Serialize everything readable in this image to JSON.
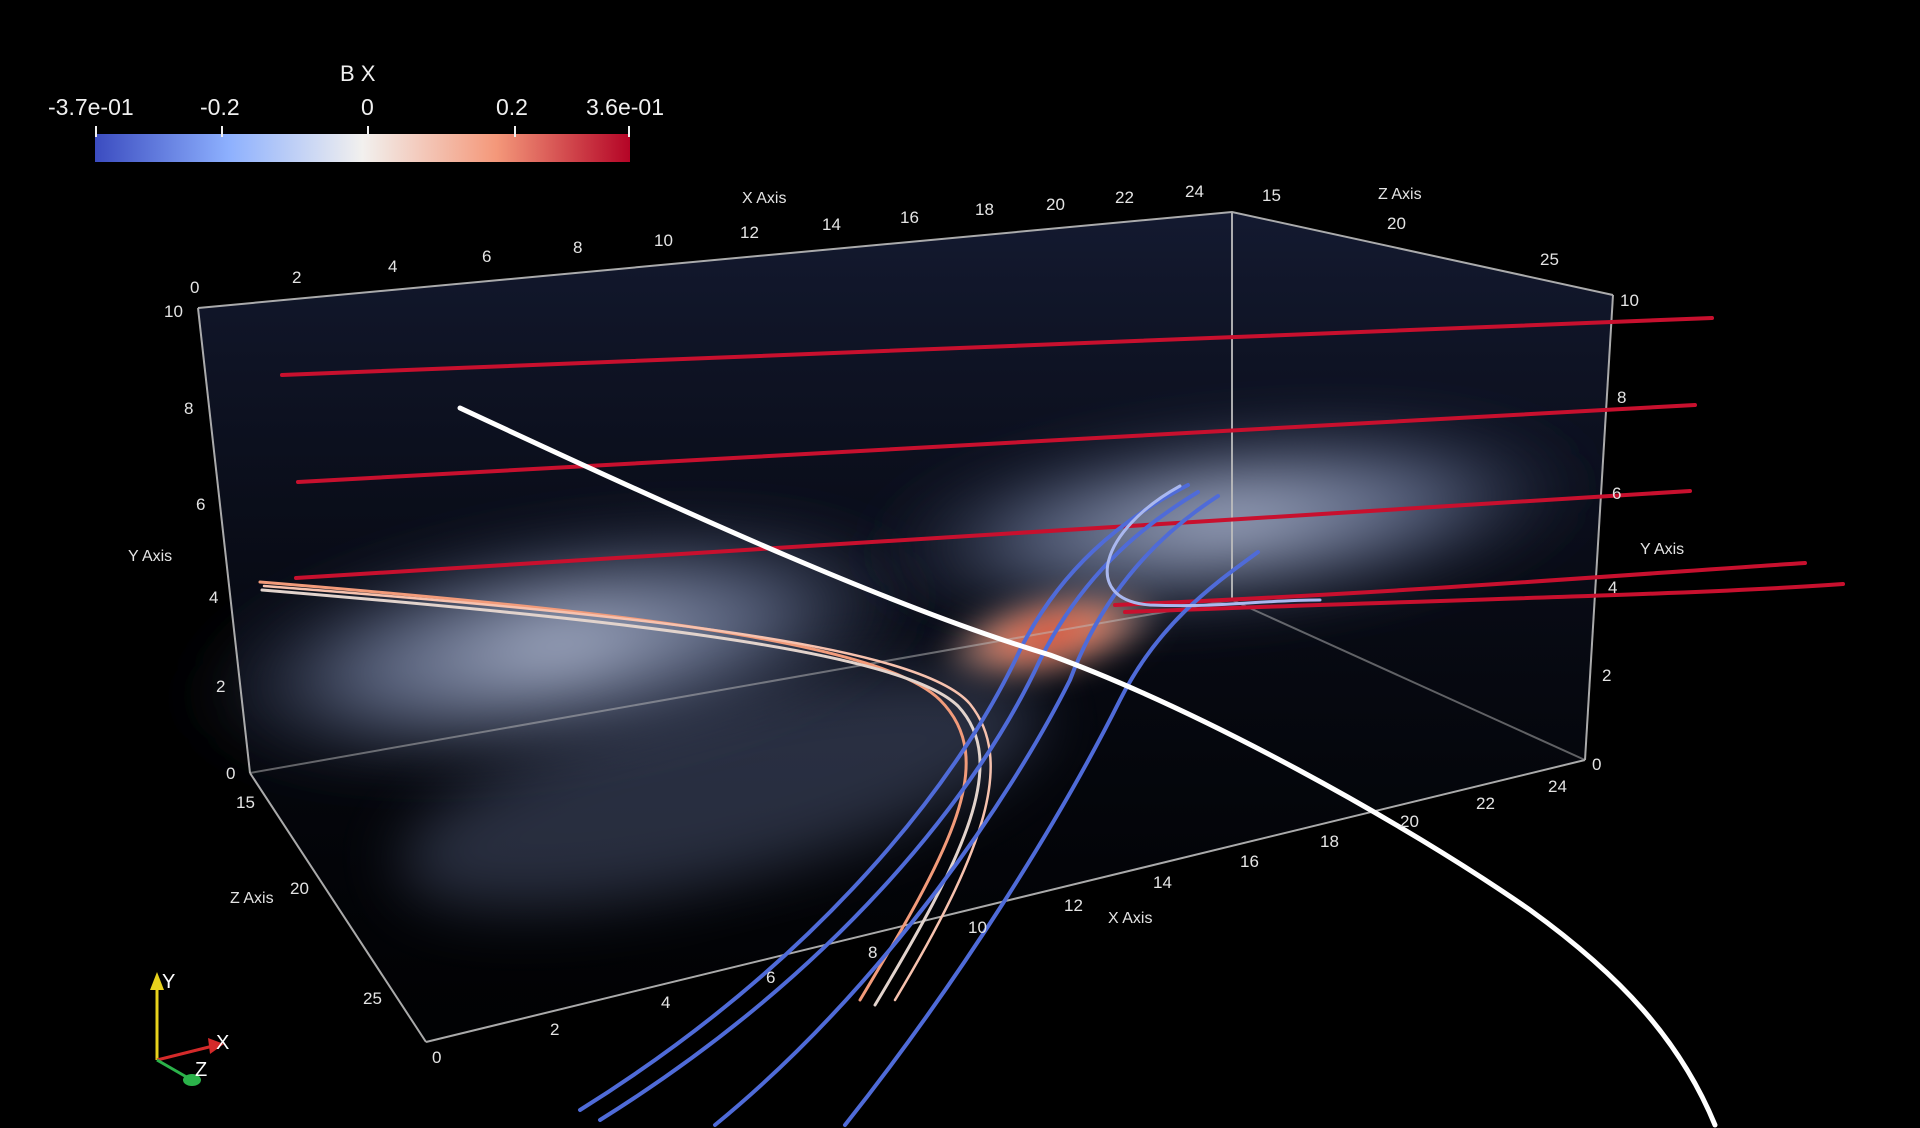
{
  "colorbar": {
    "title": "B X",
    "labels": [
      "-3.7e-01",
      "-0.2",
      "0",
      "0.2",
      "3.6e-01"
    ],
    "colors": {
      "low": "#3b4cc0",
      "mid": "#f2f0ee",
      "high": "#b40426"
    }
  },
  "axes": {
    "x_title_back": "X Axis",
    "x_title_front": "X Axis",
    "z_title_back": "Z Axis",
    "z_title_front": "Z Axis",
    "y_title_left": "Y Axis",
    "y_title_right": "Y Axis",
    "x_ticks_back": [
      "0",
      "2",
      "4",
      "6",
      "8",
      "10",
      "12",
      "14",
      "16",
      "18",
      "20",
      "22",
      "24"
    ],
    "x_ticks_front": [
      "0",
      "2",
      "4",
      "6",
      "8",
      "10",
      "12",
      "14",
      "16",
      "18",
      "20",
      "22",
      "24"
    ],
    "z_ticks_back": [
      "15",
      "20",
      "25"
    ],
    "z_ticks_front": [
      "15",
      "20",
      "25"
    ],
    "y_ticks_left": [
      "0",
      "2",
      "4",
      "6",
      "8",
      "10"
    ],
    "y_ticks_right": [
      "0",
      "2",
      "4",
      "6",
      "8",
      "10"
    ]
  },
  "orientation": {
    "y": "Y",
    "x": "X",
    "z": "Z"
  },
  "colors": {
    "background": "#000000",
    "outline": "#bdbdbd",
    "red_lines": "#c8102e",
    "blue_lines": "#4f6bd8",
    "white_line": "#ffffff"
  }
}
